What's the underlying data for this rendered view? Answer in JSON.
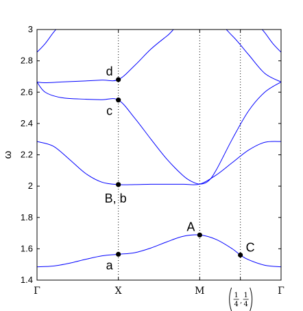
{
  "chart_data": {
    "type": "line",
    "ylabel": "ω",
    "ylim": [
      1.4,
      3.0
    ],
    "yticks": [
      1.4,
      1.6,
      1.8,
      2.0,
      2.2,
      2.4,
      2.6,
      2.8,
      3.0
    ],
    "ytick_labels": [
      "1.4",
      "1.6",
      "1.8",
      "2",
      "2.2",
      "2.4",
      "2.6",
      "2.8",
      "3"
    ],
    "xlim": [
      0,
      3
    ],
    "xticks": [
      {
        "x": 0,
        "label": "Γ"
      },
      {
        "x": 1,
        "label": "X"
      },
      {
        "x": 2,
        "label": "M"
      },
      {
        "x": 2.5,
        "label": "(1/4, 1/4)",
        "frac": [
          "1",
          "4",
          "1",
          "4"
        ]
      },
      {
        "x": 3,
        "label": "Γ"
      }
    ],
    "grid": false,
    "line_color": "#0000ff",
    "series": [
      {
        "x": [
          0,
          0.2,
          0.4,
          0.6,
          0.8,
          1.0,
          1.2,
          1.4,
          1.6,
          1.8,
          2.0,
          2.2,
          2.4,
          2.5,
          2.6,
          2.8,
          3.0
        ],
        "values": [
          1.485,
          1.49,
          1.508,
          1.533,
          1.555,
          1.565,
          1.575,
          1.605,
          1.645,
          1.68,
          1.688,
          1.66,
          1.6,
          1.56,
          1.53,
          1.495,
          1.485
        ]
      },
      {
        "x": [
          0,
          0.2,
          0.4,
          0.6,
          0.8,
          1.0,
          1.2,
          1.4,
          1.6,
          1.8,
          2.0,
          2.2,
          2.4,
          2.6,
          2.8,
          3.0
        ],
        "values": [
          2.285,
          2.255,
          2.17,
          2.08,
          2.025,
          2.01,
          2.01,
          2.012,
          2.012,
          2.012,
          2.013,
          2.07,
          2.15,
          2.23,
          2.28,
          2.285
        ]
      },
      {
        "x": [
          0,
          0.1,
          0.3,
          0.6,
          0.8,
          1.0,
          1.2,
          1.4,
          1.6,
          1.8,
          1.9,
          2.0,
          2.1,
          2.2,
          2.4,
          2.6,
          2.8,
          3.0
        ],
        "values": [
          2.665,
          2.6,
          2.565,
          2.555,
          2.552,
          2.55,
          2.435,
          2.3,
          2.17,
          2.065,
          2.03,
          2.013,
          2.03,
          2.1,
          2.3,
          2.48,
          2.6,
          2.665
        ]
      },
      {
        "x": [
          0,
          0.1,
          0.3,
          0.6,
          0.8,
          1.0,
          1.2,
          1.4,
          1.6,
          1.8,
          2.2,
          2.4,
          2.6,
          2.8,
          3.0
        ],
        "values": [
          2.665,
          2.66,
          2.665,
          2.672,
          2.677,
          2.68,
          2.77,
          2.875,
          2.96,
          3.04,
          3.04,
          2.96,
          2.84,
          2.72,
          2.665
        ]
      },
      {
        "x": [
          0,
          0.1,
          0.2,
          0.3,
          0.4
        ],
        "values": [
          2.855,
          2.91,
          2.98,
          3.04,
          3.1
        ]
      },
      {
        "x": [
          2.6,
          2.7,
          2.8,
          2.9,
          3.0
        ],
        "values": [
          3.1,
          3.04,
          2.98,
          2.91,
          2.855
        ]
      }
    ],
    "vlines": [
      1,
      2,
      2.5
    ],
    "points": [
      {
        "label": "a",
        "x": 1.0,
        "y": 1.565,
        "pos": "below-left"
      },
      {
        "label": "B, b",
        "x": 1.0,
        "y": 2.01,
        "pos": "below"
      },
      {
        "label": "c",
        "x": 1.0,
        "y": 2.55,
        "pos": "below-left"
      },
      {
        "label": "d",
        "x": 1.0,
        "y": 2.68,
        "pos": "above-left"
      },
      {
        "label": "A",
        "x": 2.0,
        "y": 1.688,
        "pos": "above-left"
      },
      {
        "label": "C",
        "x": 2.5,
        "y": 1.56,
        "pos": "above-right"
      }
    ]
  }
}
